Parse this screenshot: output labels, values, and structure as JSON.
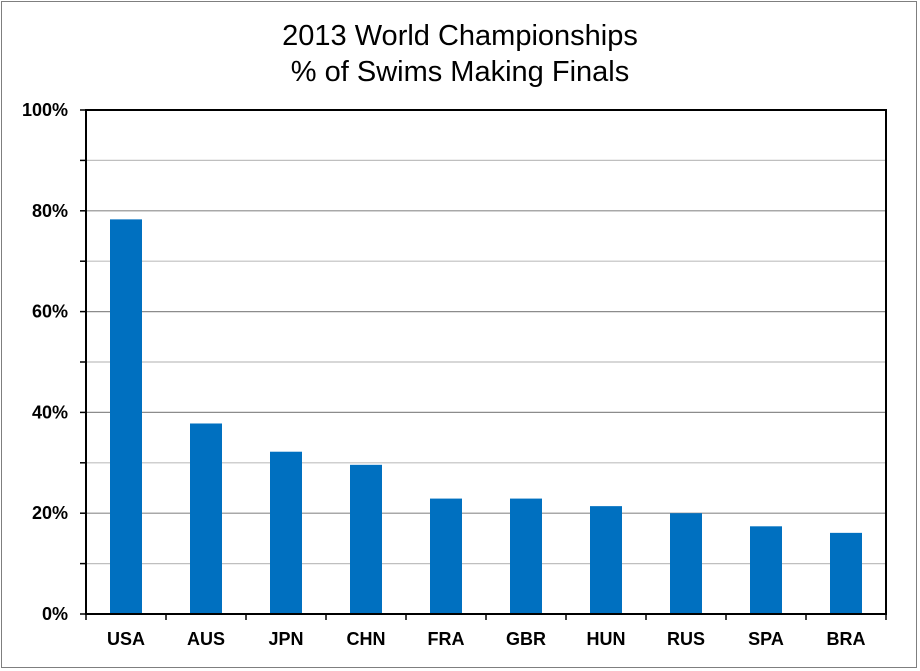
{
  "chart_data": {
    "type": "bar",
    "title_lines": [
      "2013 World Championships",
      "% of Swims Making Finals"
    ],
    "xlabel": "",
    "ylabel": "",
    "categories": [
      "USA",
      "AUS",
      "JPN",
      "CHN",
      "FRA",
      "GBR",
      "HUN",
      "RUS",
      "SPA",
      "BRA"
    ],
    "values": [
      78.3,
      37.8,
      32.2,
      29.6,
      22.9,
      22.9,
      21.4,
      20.0,
      17.4,
      16.1
    ],
    "ylim": [
      0,
      100
    ],
    "yticks": [
      0,
      20,
      40,
      60,
      80,
      100
    ],
    "ytick_labels": [
      "0%",
      "20%",
      "40%",
      "60%",
      "80%",
      "100%"
    ],
    "grid": true,
    "legend": "none",
    "bar_color": "#0070C0"
  }
}
